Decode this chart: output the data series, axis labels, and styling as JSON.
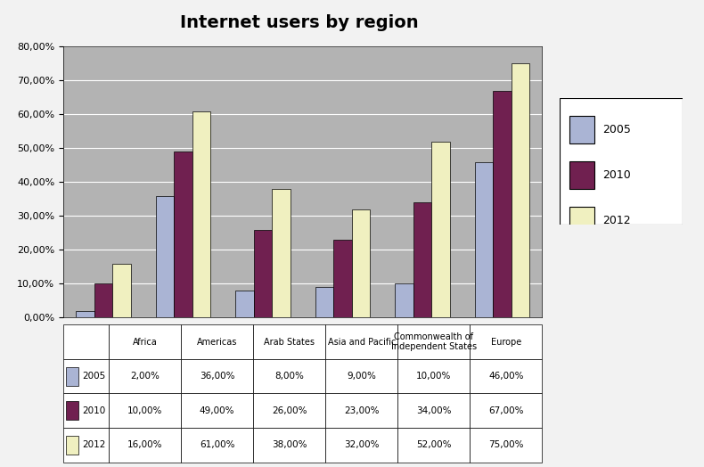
{
  "title": "Internet users by region",
  "categories": [
    "Africa",
    "Americas",
    "Arab States",
    "Asia and Pacific",
    "Commonwealth of\nIndependent States",
    "Europe"
  ],
  "categories_table": [
    "Africa",
    "Americas",
    "Arab States",
    "Asia and Pacific",
    "Commonwealth of\nIndependent States",
    "Europe"
  ],
  "series": {
    "2005": [
      2,
      36,
      8,
      9,
      10,
      46
    ],
    "2010": [
      10,
      49,
      26,
      23,
      34,
      67
    ],
    "2012": [
      16,
      61,
      38,
      32,
      52,
      75
    ]
  },
  "colors": {
    "2005": "#aab4d4",
    "2010": "#702050",
    "2012": "#f0f0c0"
  },
  "legend_labels": [
    "2005",
    "2010",
    "2012"
  ],
  "ylim": [
    0,
    80
  ],
  "yticks": [
    0,
    10,
    20,
    30,
    40,
    50,
    60,
    70,
    80
  ],
  "plot_area_color": "#b3b3b3",
  "fig_background": "#f2f2f2",
  "table_data": [
    [
      "2,00%",
      "36,00%",
      "8,00%",
      "9,00%",
      "10,00%",
      "46,00%"
    ],
    [
      "10,00%",
      "49,00%",
      "26,00%",
      "23,00%",
      "34,00%",
      "67,00%"
    ],
    [
      "16,00%",
      "61,00%",
      "38,00%",
      "32,00%",
      "52,00%",
      "75,00%"
    ]
  ],
  "title_fontsize": 14,
  "tick_fontsize": 8,
  "legend_fontsize": 9,
  "table_fontsize": 7.5
}
